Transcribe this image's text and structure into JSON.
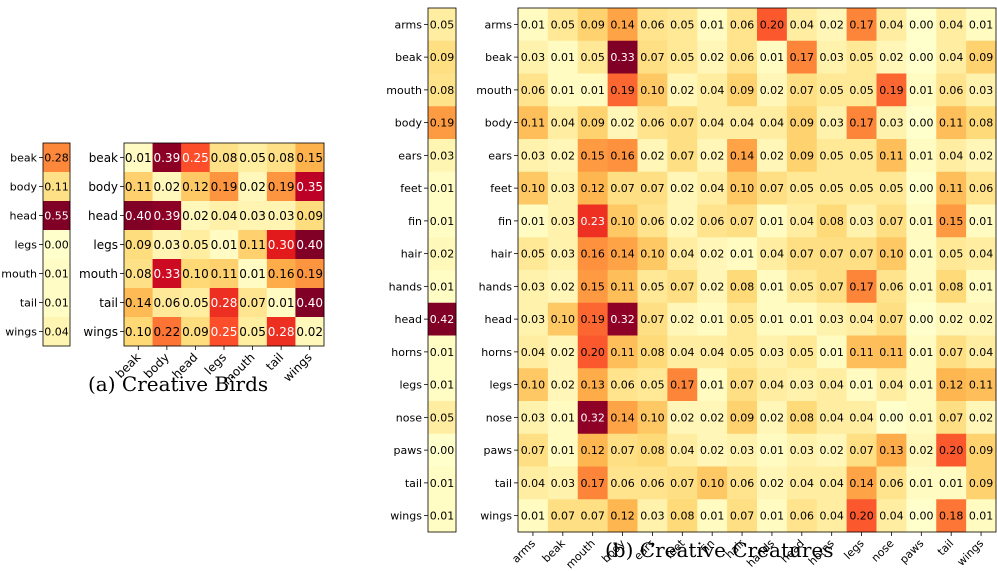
{
  "chart_data": [
    {
      "type": "heatmap",
      "name": "birds-vector",
      "rows": [
        "beak",
        "body",
        "head",
        "legs",
        "mouth",
        "tail",
        "wings"
      ],
      "values": [
        [
          0.28
        ],
        [
          0.11
        ],
        [
          0.55
        ],
        [
          0.0
        ],
        [
          0.01
        ],
        [
          0.01
        ],
        [
          0.04
        ]
      ],
      "color_range": [
        0,
        0.55
      ]
    },
    {
      "type": "heatmap",
      "name": "birds-matrix",
      "rows": [
        "beak",
        "body",
        "head",
        "legs",
        "mouth",
        "tail",
        "wings"
      ],
      "cols": [
        "beak",
        "body",
        "head",
        "legs",
        "mouth",
        "tail",
        "wings"
      ],
      "values": [
        [
          0.01,
          0.39,
          0.25,
          0.08,
          0.05,
          0.08,
          0.15
        ],
        [
          0.11,
          0.02,
          0.12,
          0.19,
          0.02,
          0.19,
          0.35
        ],
        [
          0.4,
          0.39,
          0.02,
          0.04,
          0.03,
          0.03,
          0.09
        ],
        [
          0.09,
          0.03,
          0.05,
          0.01,
          0.11,
          0.3,
          0.4
        ],
        [
          0.08,
          0.33,
          0.1,
          0.11,
          0.01,
          0.16,
          0.19
        ],
        [
          0.14,
          0.06,
          0.05,
          0.28,
          0.07,
          0.01,
          0.4
        ],
        [
          0.1,
          0.22,
          0.09,
          0.25,
          0.05,
          0.28,
          0.02
        ]
      ],
      "color_range": [
        0,
        0.4
      ]
    },
    {
      "type": "heatmap",
      "name": "creatures-vector",
      "rows": [
        "arms",
        "beak",
        "mouth",
        "body",
        "ears",
        "feet",
        "fin",
        "hair",
        "hands",
        "head",
        "horns",
        "legs",
        "nose",
        "paws",
        "tail",
        "wings"
      ],
      "values": [
        [
          0.05
        ],
        [
          0.09
        ],
        [
          0.08
        ],
        [
          0.19
        ],
        [
          0.03
        ],
        [
          0.01
        ],
        [
          0.01
        ],
        [
          0.02
        ],
        [
          0.01
        ],
        [
          0.42
        ],
        [
          0.01
        ],
        [
          0.01
        ],
        [
          0.05
        ],
        [
          0.0
        ],
        [
          0.01
        ],
        [
          0.01
        ]
      ],
      "color_range": [
        0,
        0.42
      ]
    },
    {
      "type": "heatmap",
      "name": "creatures-matrix",
      "rows": [
        "arms",
        "beak",
        "mouth",
        "body",
        "ears",
        "feet",
        "fin",
        "hair",
        "hands",
        "head",
        "horns",
        "legs",
        "nose",
        "paws",
        "tail",
        "wings"
      ],
      "cols": [
        "arms",
        "beak",
        "mouth",
        "body",
        "ears",
        "feet",
        "fin",
        "hair",
        "hands",
        "head",
        "horns",
        "legs",
        "nose",
        "paws",
        "tail",
        "wings"
      ],
      "values": [
        [
          0.01,
          0.05,
          0.09,
          0.14,
          0.06,
          0.05,
          0.01,
          0.06,
          0.2,
          0.04,
          0.02,
          0.17,
          0.04,
          0.0,
          0.04,
          0.01
        ],
        [
          0.03,
          0.01,
          0.05,
          0.33,
          0.07,
          0.05,
          0.02,
          0.06,
          0.01,
          0.17,
          0.03,
          0.05,
          0.02,
          0.0,
          0.04,
          0.09
        ],
        [
          0.06,
          0.01,
          0.01,
          0.19,
          0.1,
          0.02,
          0.04,
          0.09,
          0.02,
          0.07,
          0.05,
          0.05,
          0.19,
          0.01,
          0.06,
          0.03
        ],
        [
          0.11,
          0.04,
          0.09,
          0.02,
          0.06,
          0.07,
          0.04,
          0.04,
          0.04,
          0.09,
          0.03,
          0.17,
          0.03,
          0.0,
          0.11,
          0.08
        ],
        [
          0.03,
          0.02,
          0.15,
          0.16,
          0.02,
          0.07,
          0.02,
          0.14,
          0.02,
          0.09,
          0.05,
          0.05,
          0.11,
          0.01,
          0.04,
          0.02
        ],
        [
          0.1,
          0.03,
          0.12,
          0.07,
          0.07,
          0.02,
          0.04,
          0.1,
          0.07,
          0.05,
          0.05,
          0.05,
          0.05,
          0.0,
          0.11,
          0.06
        ],
        [
          0.01,
          0.03,
          0.23,
          0.1,
          0.06,
          0.02,
          0.06,
          0.07,
          0.01,
          0.04,
          0.08,
          0.03,
          0.07,
          0.01,
          0.15,
          0.01
        ],
        [
          0.05,
          0.03,
          0.16,
          0.14,
          0.1,
          0.04,
          0.02,
          0.01,
          0.04,
          0.07,
          0.07,
          0.07,
          0.1,
          0.01,
          0.05,
          0.04
        ],
        [
          0.03,
          0.02,
          0.15,
          0.11,
          0.05,
          0.07,
          0.02,
          0.08,
          0.01,
          0.05,
          0.07,
          0.17,
          0.06,
          0.01,
          0.08,
          0.01
        ],
        [
          0.03,
          0.1,
          0.19,
          0.32,
          0.07,
          0.02,
          0.01,
          0.05,
          0.01,
          0.01,
          0.03,
          0.04,
          0.07,
          0.0,
          0.02,
          0.02
        ],
        [
          0.04,
          0.02,
          0.2,
          0.11,
          0.08,
          0.04,
          0.04,
          0.05,
          0.03,
          0.05,
          0.01,
          0.11,
          0.11,
          0.01,
          0.07,
          0.04
        ],
        [
          0.1,
          0.02,
          0.13,
          0.06,
          0.05,
          0.17,
          0.01,
          0.07,
          0.04,
          0.03,
          0.04,
          0.01,
          0.04,
          0.01,
          0.12,
          0.11
        ],
        [
          0.03,
          0.01,
          0.32,
          0.14,
          0.1,
          0.02,
          0.02,
          0.09,
          0.02,
          0.08,
          0.04,
          0.04,
          0.0,
          0.01,
          0.07,
          0.02
        ],
        [
          0.07,
          0.01,
          0.12,
          0.07,
          0.08,
          0.04,
          0.02,
          0.03,
          0.01,
          0.03,
          0.02,
          0.07,
          0.13,
          0.02,
          0.2,
          0.09
        ],
        [
          0.04,
          0.03,
          0.17,
          0.06,
          0.06,
          0.07,
          0.1,
          0.06,
          0.02,
          0.04,
          0.04,
          0.14,
          0.06,
          0.01,
          0.01,
          0.09
        ],
        [
          0.01,
          0.07,
          0.07,
          0.12,
          0.03,
          0.08,
          0.01,
          0.07,
          0.01,
          0.06,
          0.04,
          0.2,
          0.04,
          0.0,
          0.18,
          0.01
        ]
      ],
      "color_range": [
        0,
        0.33
      ]
    }
  ],
  "captions": {
    "a": "(a) Creative Birds",
    "b": "(b) Creative Creatures"
  },
  "colormap": "YlOrRd"
}
